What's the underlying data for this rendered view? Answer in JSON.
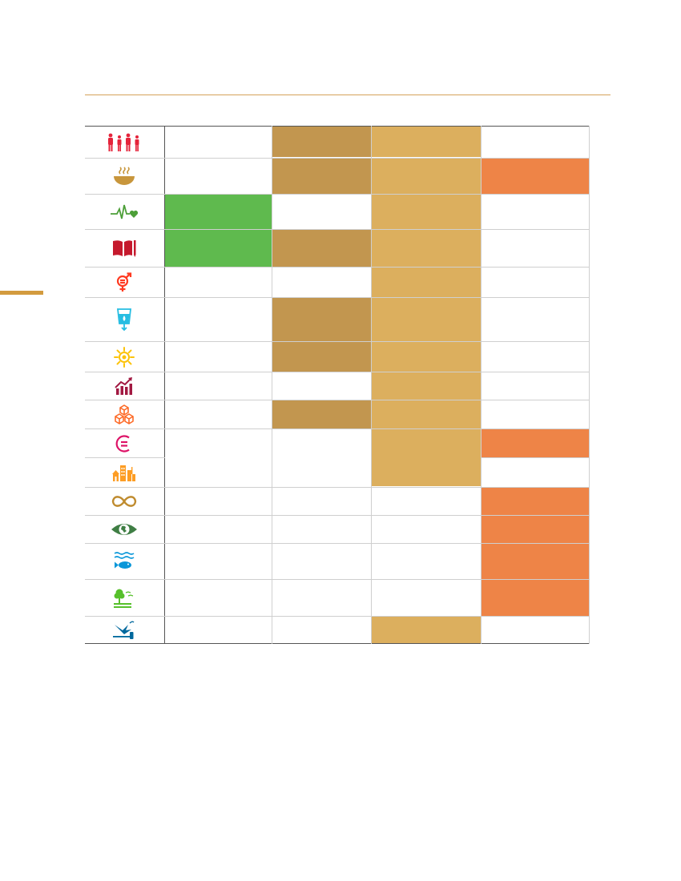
{
  "colors": {
    "green": "#5fba4e",
    "dark_tan": "#c2964f",
    "light_tan": "#dcaf5e",
    "orange": "#ee8447",
    "grid_line": "#cfcfcf",
    "header_rule": "#d4a25a",
    "side_mark": "#d39b3f"
  },
  "columns_shaded": {
    "column_1": [
      "health-goal-icon",
      "education-goal-icon"
    ],
    "column_2": [
      "hunger-goal-icon",
      "education-goal-icon",
      "water-goal-icon",
      "energy-goal-icon",
      "industry-goal-icon",
      "poverty-goal-icon"
    ],
    "column_3": [
      "poverty-goal-icon",
      "hunger-goal-icon",
      "health-goal-icon",
      "education-goal-icon",
      "gender-goal-icon",
      "water-goal-icon",
      "energy-goal-icon",
      "economy-goal-icon",
      "industry-goal-icon",
      "inequality-goal-icon",
      "cities-goal-icon",
      "peace-goal-icon"
    ],
    "column_4": [
      "hunger-goal-icon",
      "inequality-goal-icon",
      "consumption-goal-icon",
      "climate-goal-icon",
      "ocean-goal-icon",
      "land-goal-icon"
    ]
  },
  "rows": [
    {
      "icon": "poverty-goal-icon"
    },
    {
      "icon": "hunger-goal-icon"
    },
    {
      "icon": "health-goal-icon"
    },
    {
      "icon": "education-goal-icon"
    },
    {
      "icon": "gender-goal-icon"
    },
    {
      "icon": "water-goal-icon"
    },
    {
      "icon": "energy-goal-icon"
    },
    {
      "icon": "economy-goal-icon"
    },
    {
      "icon": "industry-goal-icon"
    },
    {
      "icon": "inequality-goal-icon"
    },
    {
      "icon": "cities-goal-icon"
    },
    {
      "icon": "consumption-goal-icon"
    },
    {
      "icon": "climate-goal-icon"
    },
    {
      "icon": "ocean-goal-icon"
    },
    {
      "icon": "land-goal-icon"
    },
    {
      "icon": "peace-goal-icon"
    }
  ]
}
